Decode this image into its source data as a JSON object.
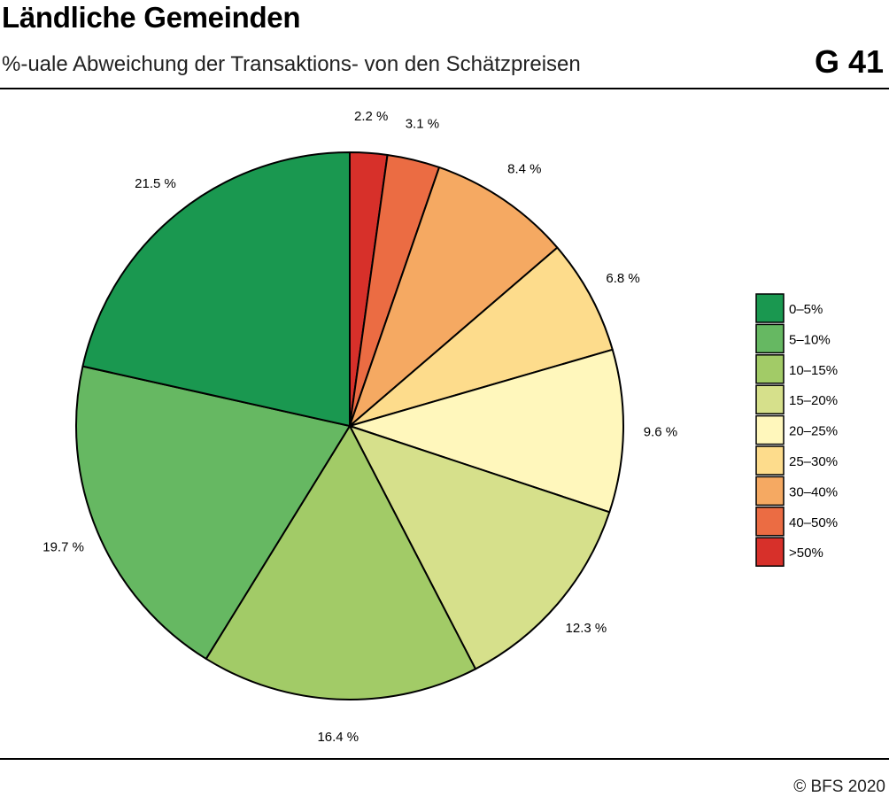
{
  "header": {
    "title": "Ländliche Gemeinden",
    "subtitle": "%-uale Abweichung der Transaktions- von den Schätzpreisen",
    "figure_number": "G 41"
  },
  "footer": {
    "source": "© BFS 2020"
  },
  "chart_data": {
    "type": "pie",
    "title": "Ländliche Gemeinden",
    "subtitle": "%-uale Abweichung der Transaktions- von den Schätzpreisen",
    "legend_position": "right",
    "start": "top",
    "direction": "clockwise",
    "slices": [
      {
        "category": ">50%",
        "value": 2.2,
        "label": "2.2 %",
        "color": "#d7302a"
      },
      {
        "category": "40–50%",
        "value": 3.1,
        "label": "3.1 %",
        "color": "#eb6c43"
      },
      {
        "category": "30–40%",
        "value": 8.4,
        "label": "8.4 %",
        "color": "#f5a962"
      },
      {
        "category": "25–30%",
        "value": 6.8,
        "label": "6.8 %",
        "color": "#fddc8c"
      },
      {
        "category": "20–25%",
        "value": 9.6,
        "label": "9.6 %",
        "color": "#fff7bc"
      },
      {
        "category": "15–20%",
        "value": 12.3,
        "label": "12.3 %",
        "color": "#d6e08b"
      },
      {
        "category": "10–15%",
        "value": 16.4,
        "label": "16.4 %",
        "color": "#a2cb67"
      },
      {
        "category": "5–10%",
        "value": 19.7,
        "label": "19.7 %",
        "color": "#66b862"
      },
      {
        "category": "0–5%",
        "value": 21.5,
        "label": "21.5 %",
        "color": "#1a9850"
      }
    ],
    "legend": [
      {
        "label": "0–5%",
        "color": "#1a9850"
      },
      {
        "label": "5–10%",
        "color": "#66b862"
      },
      {
        "label": "10–15%",
        "color": "#a2cb67"
      },
      {
        "label": "15–20%",
        "color": "#d6e08b"
      },
      {
        "label": "20–25%",
        "color": "#fff7bc"
      },
      {
        "label": "25–30%",
        "color": "#fddc8c"
      },
      {
        "label": "30–40%",
        "color": "#f5a962"
      },
      {
        "label": "40–50%",
        "color": "#eb6c43"
      },
      {
        "label": ">50%",
        "color": "#d7302a"
      }
    ]
  }
}
